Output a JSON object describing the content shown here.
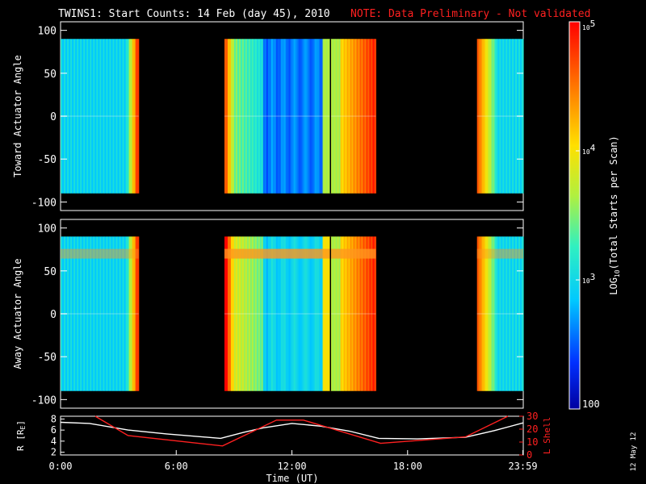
{
  "header": {
    "title": "TWINS1: Start Counts: 14 Feb (day  45), 2010",
    "note": "NOTE: Data Preliminary - Not validated"
  },
  "side_date": "12 May 12",
  "colors": {
    "note": "#ff2020",
    "l_shell": "#ff2020",
    "r_line": "#ffffff",
    "midline": "#000000"
  },
  "chart_data": [
    {
      "type": "heatmap",
      "ylabel": "Toward Actuator Angle",
      "ylim": [
        -110,
        110
      ],
      "yticks": [
        "100",
        "50",
        "0",
        "-50",
        "-100"
      ],
      "ytick_values": [
        100,
        50,
        0,
        -50,
        -100
      ],
      "data_range": [
        -90,
        90
      ],
      "segments": [
        {
          "start_hour": 0.0,
          "end_hour": 4.05
        },
        {
          "start_hour": 8.5,
          "end_hour": 16.35
        },
        {
          "start_hour": 21.6,
          "end_hour": 24.0
        }
      ],
      "marker_hour": 14.0
    },
    {
      "type": "heatmap",
      "ylabel": "Away Actuator Angle",
      "ylim": [
        -110,
        110
      ],
      "yticks": [
        "100",
        "50",
        "0",
        "-50",
        "-100"
      ],
      "ytick_values": [
        100,
        50,
        0,
        -50,
        -100
      ],
      "data_range": [
        -90,
        90
      ],
      "segments": [
        {
          "start_hour": 0.0,
          "end_hour": 4.05
        },
        {
          "start_hour": 8.5,
          "end_hour": 16.35
        },
        {
          "start_hour": 21.6,
          "end_hour": 24.0
        }
      ],
      "marker_hour": 14.0
    },
    {
      "type": "line",
      "xlabel": "Time (UT)",
      "xticks": [
        "0:00",
        "6:00",
        "12:00",
        "18:00",
        "23:59"
      ],
      "xtick_hours": [
        0,
        6,
        12,
        18,
        23.98
      ],
      "left_axis": {
        "label": "R [RE]",
        "yticks": [
          "8",
          "6",
          "4",
          "2"
        ],
        "ytick_values": [
          8,
          6,
          4,
          2
        ],
        "ylim": [
          1.5,
          8.5
        ]
      },
      "right_axis": {
        "label": "L Shell",
        "yticks": [
          "30",
          "20",
          "10",
          "0"
        ],
        "ytick_values": [
          30,
          20,
          10,
          0
        ],
        "ylim": [
          0,
          30
        ]
      },
      "series": [
        {
          "name": "R",
          "axis": "left",
          "x": [
            0,
            1.5,
            3.5,
            5.5,
            8.3,
            9.5,
            10.5,
            12.0,
            13.5,
            15.0,
            16.5,
            18.5,
            21.0,
            22.5,
            24.0
          ],
          "y": [
            7.4,
            7.2,
            6.0,
            5.3,
            4.5,
            5.6,
            6.4,
            7.2,
            6.7,
            5.8,
            4.5,
            4.4,
            4.7,
            5.9,
            7.3
          ]
        },
        {
          "name": "L Shell",
          "axis": "right",
          "x": [
            1.8,
            3.5,
            8.4,
            11.2,
            12.6,
            16.6,
            21.0,
            23.2
          ],
          "y": [
            30,
            15,
            7,
            27,
            27,
            9,
            14,
            30
          ]
        }
      ]
    }
  ],
  "colorbar": {
    "label": "LOG10(Total Starts per Scan)",
    "label_main": "LOG",
    "label_sub": "10",
    "label_rest": "(Total Starts per Scan)",
    "scale": "log",
    "range": [
      100,
      100000
    ],
    "ticks": [
      {
        "value": 100000,
        "base": "10",
        "exp": "5"
      },
      {
        "value": 10000,
        "base": "10",
        "exp": "4"
      },
      {
        "value": 1000,
        "base": "10",
        "exp": "3"
      },
      {
        "value": 100,
        "base": "100",
        "exp": ""
      }
    ]
  }
}
